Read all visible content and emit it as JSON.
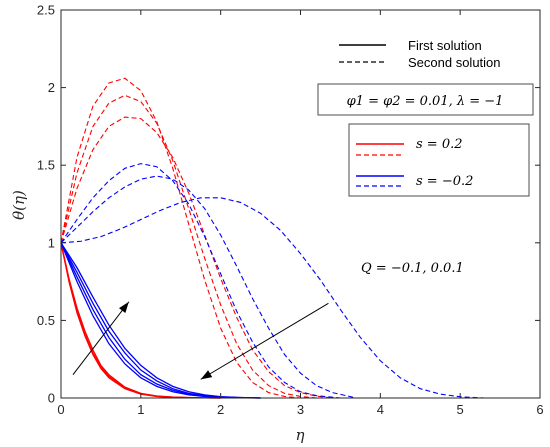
{
  "chart_data": {
    "type": "line",
    "xlabel": "η",
    "ylabel": "θ(η)",
    "xlim": [
      0,
      6
    ],
    "ylim": [
      0,
      2.5
    ],
    "xticks": [
      0,
      1,
      2,
      3,
      4,
      5,
      6
    ],
    "yticks": [
      0,
      0.5,
      1,
      1.5,
      2,
      2.5
    ],
    "ytick_labels": [
      "0",
      "0.5",
      "1",
      "1.5",
      "2",
      "2.5"
    ],
    "grid": false,
    "colors": {
      "red": "#ff0000",
      "blue": "#0000ff",
      "axis": "#262626"
    },
    "legend_lines": {
      "solid_label": "First solution",
      "dashed_label": "Second solution",
      "placement": "top-right"
    },
    "params_box": "φ1 = φ2 = 0.01, λ = −1",
    "legend_s": [
      {
        "label": "s = 0.2",
        "color": "#ff0000"
      },
      {
        "label": "s = −0.2",
        "color": "#0000ff"
      }
    ],
    "annotation": "Q = −0.1, 0.0.1",
    "series": [
      {
        "color": "#ff0000",
        "style": "solid",
        "x": [
          0,
          0.1,
          0.2,
          0.3,
          0.4,
          0.5,
          0.6,
          0.8,
          1.0,
          1.2,
          1.4,
          1.6,
          1.8,
          2.0
        ],
        "y": [
          1.0,
          0.75,
          0.55,
          0.4,
          0.28,
          0.19,
          0.13,
          0.06,
          0.025,
          0.01,
          0.004,
          0.002,
          0.001,
          0
        ]
      },
      {
        "color": "#ff0000",
        "style": "solid",
        "x": [
          0,
          0.1,
          0.2,
          0.3,
          0.4,
          0.5,
          0.6,
          0.8,
          1.0,
          1.2,
          1.4,
          1.6,
          1.8,
          2.0
        ],
        "y": [
          1.0,
          0.76,
          0.56,
          0.41,
          0.29,
          0.2,
          0.14,
          0.065,
          0.028,
          0.012,
          0.005,
          0.002,
          0.001,
          0
        ]
      },
      {
        "color": "#ff0000",
        "style": "solid",
        "x": [
          0,
          0.1,
          0.2,
          0.3,
          0.4,
          0.5,
          0.6,
          0.8,
          1.0,
          1.2,
          1.4,
          1.6,
          1.8,
          2.0
        ],
        "y": [
          1.0,
          0.77,
          0.58,
          0.43,
          0.31,
          0.21,
          0.15,
          0.07,
          0.03,
          0.013,
          0.006,
          0.003,
          0.001,
          0
        ]
      },
      {
        "color": "#0000ff",
        "style": "solid",
        "x": [
          0,
          0.2,
          0.4,
          0.6,
          0.8,
          1.0,
          1.2,
          1.4,
          1.6,
          1.8,
          2.0,
          2.2,
          2.5
        ],
        "y": [
          1.0,
          0.75,
          0.53,
          0.35,
          0.22,
          0.13,
          0.075,
          0.04,
          0.02,
          0.01,
          0.005,
          0.002,
          0
        ]
      },
      {
        "color": "#0000ff",
        "style": "solid",
        "x": [
          0,
          0.2,
          0.4,
          0.6,
          0.8,
          1.0,
          1.2,
          1.4,
          1.6,
          1.8,
          2.0,
          2.2,
          2.5
        ],
        "y": [
          1.0,
          0.78,
          0.57,
          0.39,
          0.25,
          0.15,
          0.09,
          0.05,
          0.025,
          0.012,
          0.006,
          0.003,
          0
        ]
      },
      {
        "color": "#0000ff",
        "style": "solid",
        "x": [
          0,
          0.2,
          0.4,
          0.6,
          0.8,
          1.0,
          1.2,
          1.4,
          1.6,
          1.8,
          2.0,
          2.2,
          2.5
        ],
        "y": [
          1.0,
          0.81,
          0.61,
          0.43,
          0.29,
          0.18,
          0.11,
          0.06,
          0.03,
          0.015,
          0.007,
          0.003,
          0
        ]
      },
      {
        "color": "#0000ff",
        "style": "solid",
        "x": [
          0,
          0.2,
          0.4,
          0.6,
          0.8,
          1.0,
          1.2,
          1.4,
          1.6,
          1.8,
          2.0,
          2.2,
          2.5
        ],
        "y": [
          1.0,
          0.84,
          0.65,
          0.47,
          0.32,
          0.21,
          0.13,
          0.075,
          0.04,
          0.02,
          0.009,
          0.004,
          0
        ]
      },
      {
        "color": "#ff0000",
        "style": "dashed",
        "x": [
          0,
          0.2,
          0.4,
          0.6,
          0.8,
          1.0,
          1.2,
          1.4,
          1.6,
          1.8,
          2.0,
          2.2,
          2.4,
          2.6,
          2.8,
          3.0
        ],
        "y": [
          1.0,
          1.55,
          1.88,
          2.03,
          2.06,
          1.98,
          1.78,
          1.48,
          1.12,
          0.76,
          0.45,
          0.23,
          0.1,
          0.035,
          0.01,
          0
        ]
      },
      {
        "color": "#ff0000",
        "style": "dashed",
        "x": [
          0,
          0.2,
          0.4,
          0.6,
          0.8,
          1.0,
          1.2,
          1.4,
          1.6,
          1.8,
          2.0,
          2.2,
          2.4,
          2.6,
          2.8,
          3.0,
          3.2
        ],
        "y": [
          1.0,
          1.45,
          1.75,
          1.9,
          1.95,
          1.91,
          1.77,
          1.53,
          1.22,
          0.9,
          0.6,
          0.35,
          0.18,
          0.08,
          0.03,
          0.01,
          0
        ]
      },
      {
        "color": "#ff0000",
        "style": "dashed",
        "x": [
          0,
          0.2,
          0.4,
          0.6,
          0.8,
          1.0,
          1.2,
          1.4,
          1.6,
          1.8,
          2.0,
          2.2,
          2.4,
          2.6,
          2.8,
          3.0,
          3.2,
          3.4
        ],
        "y": [
          1.0,
          1.35,
          1.6,
          1.75,
          1.81,
          1.8,
          1.71,
          1.55,
          1.32,
          1.05,
          0.77,
          0.52,
          0.31,
          0.17,
          0.08,
          0.035,
          0.012,
          0
        ]
      },
      {
        "color": "#0000ff",
        "style": "dashed",
        "x": [
          0,
          0.2,
          0.4,
          0.6,
          0.8,
          1.0,
          1.2,
          1.4,
          1.6,
          1.8,
          2.0,
          2.2,
          2.4,
          2.6,
          2.8,
          3.0,
          3.2,
          3.5
        ],
        "y": [
          1.0,
          1.15,
          1.29,
          1.4,
          1.48,
          1.51,
          1.49,
          1.4,
          1.25,
          1.04,
          0.8,
          0.56,
          0.36,
          0.2,
          0.1,
          0.04,
          0.015,
          0
        ]
      },
      {
        "color": "#0000ff",
        "style": "dashed",
        "x": [
          0,
          0.2,
          0.4,
          0.6,
          0.8,
          1.0,
          1.2,
          1.4,
          1.6,
          1.8,
          2.0,
          2.2,
          2.4,
          2.6,
          2.8,
          3.0,
          3.2,
          3.4,
          3.7
        ],
        "y": [
          1.0,
          1.1,
          1.2,
          1.29,
          1.36,
          1.41,
          1.43,
          1.41,
          1.34,
          1.22,
          1.05,
          0.85,
          0.64,
          0.45,
          0.28,
          0.16,
          0.08,
          0.035,
          0
        ]
      },
      {
        "color": "#0000ff",
        "style": "dashed",
        "x": [
          0,
          0.25,
          0.5,
          0.75,
          1.0,
          1.25,
          1.5,
          1.75,
          2.0,
          2.25,
          2.5,
          2.75,
          3.0,
          3.25,
          3.5,
          3.75,
          4.0,
          4.25,
          4.5,
          4.75,
          5.0,
          5.3
        ],
        "y": [
          1.0,
          1.01,
          1.04,
          1.09,
          1.15,
          1.21,
          1.26,
          1.29,
          1.29,
          1.26,
          1.19,
          1.08,
          0.93,
          0.76,
          0.57,
          0.39,
          0.24,
          0.13,
          0.06,
          0.025,
          0.008,
          0
        ]
      }
    ],
    "arrows": [
      {
        "x1": 0.15,
        "y1": 0.15,
        "x2": 0.85,
        "y2": 0.62
      },
      {
        "x1": 3.35,
        "y1": 0.61,
        "x2": 1.75,
        "y2": 0.12
      }
    ]
  }
}
